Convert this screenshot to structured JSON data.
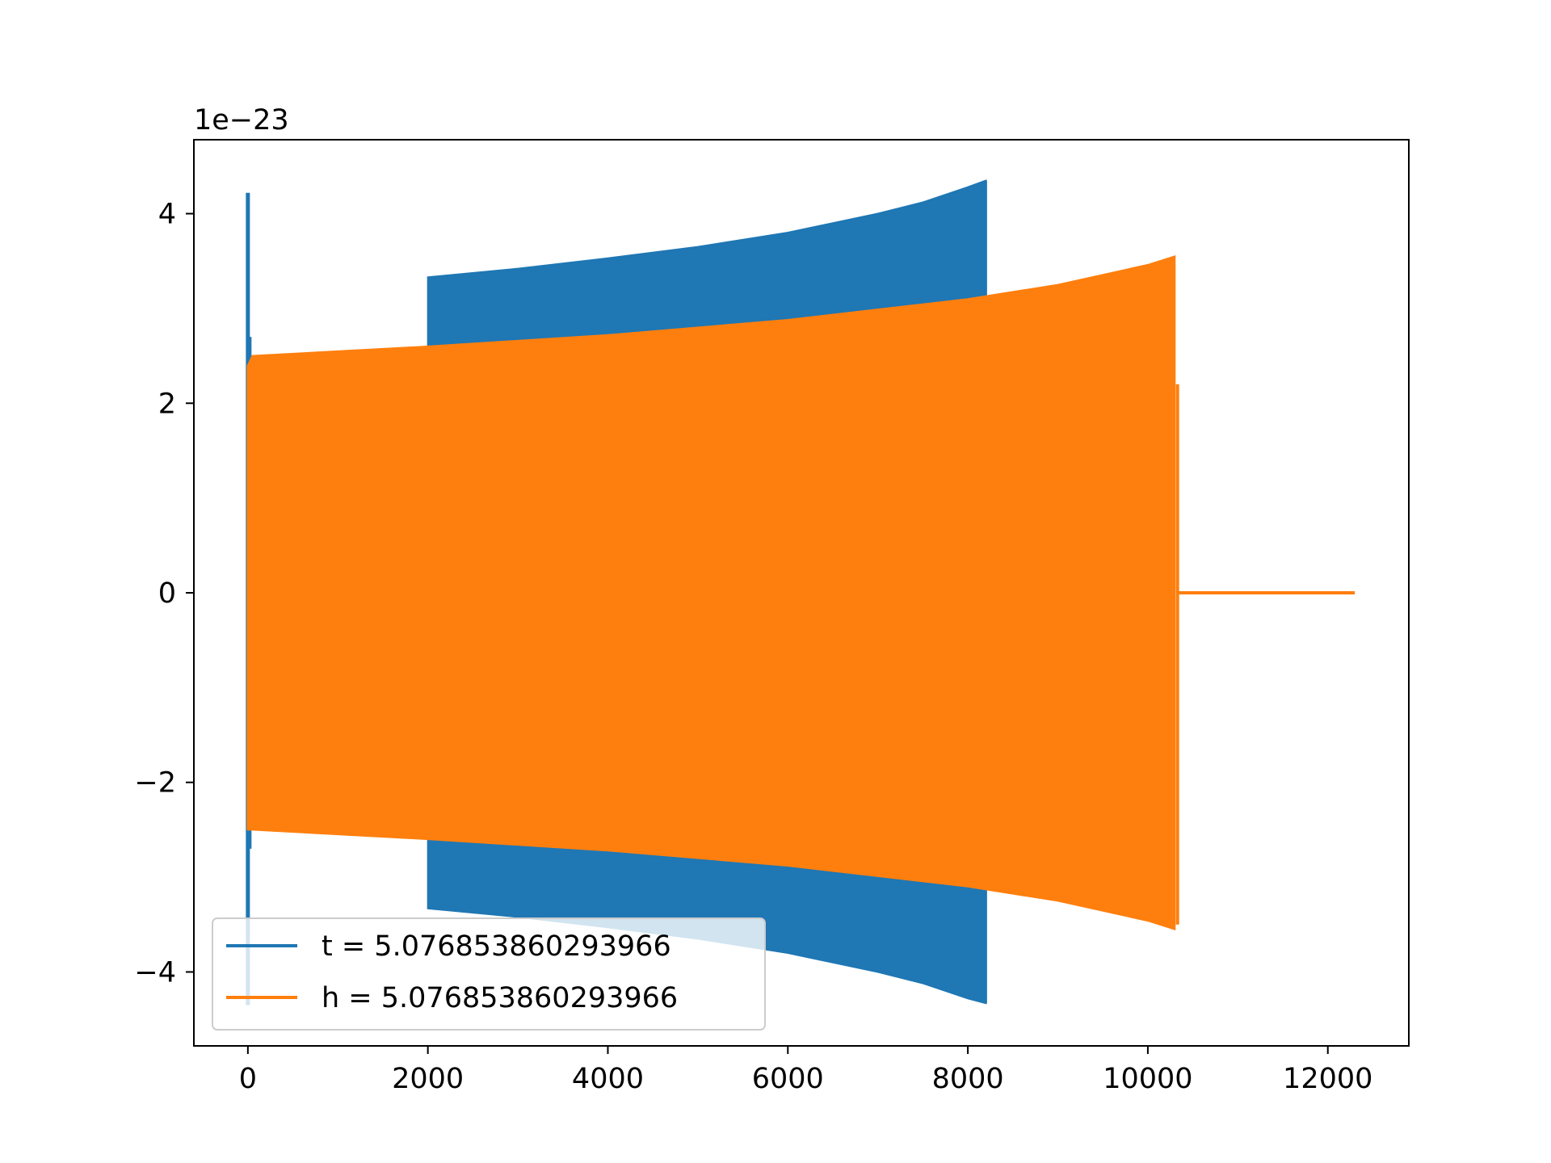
{
  "chart_data": {
    "type": "line",
    "y_offset_label": "1e−23",
    "y_scale_exponent": -23,
    "xlim": [
      -600,
      12900
    ],
    "ylim": [
      -4.78,
      4.78
    ],
    "x_ticks": [
      0,
      2000,
      4000,
      6000,
      8000,
      10000,
      12000
    ],
    "x_tick_labels": [
      "0",
      "2000",
      "4000",
      "6000",
      "8000",
      "10000",
      "12000"
    ],
    "y_ticks": [
      -4,
      -2,
      0,
      2,
      4
    ],
    "y_tick_labels": [
      "−4",
      "−2",
      "0",
      "2",
      "4"
    ],
    "grid": false,
    "legend_position": "lower left",
    "series": [
      {
        "name": "t = 5.076853860293966",
        "color": "#1f77b4",
        "initial_spike": {
          "x": 0,
          "max": 4.22,
          "min": -4.35,
          "secondary_max": 2.7
        },
        "envelope": [
          {
            "x": 2000,
            "upper": 3.33,
            "lower": -3.33
          },
          {
            "x": 3000,
            "upper": 3.42,
            "lower": -3.42
          },
          {
            "x": 4000,
            "upper": 3.53,
            "lower": -3.53
          },
          {
            "x": 5000,
            "upper": 3.65,
            "lower": -3.65
          },
          {
            "x": 6000,
            "upper": 3.8,
            "lower": -3.8
          },
          {
            "x": 7000,
            "upper": 4.0,
            "lower": -4.0
          },
          {
            "x": 7500,
            "upper": 4.12,
            "lower": -4.12
          },
          {
            "x": 8000,
            "upper": 4.28,
            "lower": -4.28
          },
          {
            "x": 8200,
            "upper": 4.35,
            "lower": -4.33
          }
        ]
      },
      {
        "name": "h = 5.076853860293966",
        "color": "#ff7f0e",
        "envelope": [
          {
            "x": 0,
            "upper": 2.4,
            "lower": -2.5
          },
          {
            "x": 50,
            "upper": 2.5,
            "lower": -2.5
          },
          {
            "x": 2000,
            "upper": 2.6,
            "lower": -2.6
          },
          {
            "x": 4000,
            "upper": 2.72,
            "lower": -2.72
          },
          {
            "x": 6000,
            "upper": 2.88,
            "lower": -2.88
          },
          {
            "x": 8000,
            "upper": 3.1,
            "lower": -3.1
          },
          {
            "x": 9000,
            "upper": 3.25,
            "lower": -3.25
          },
          {
            "x": 10000,
            "upper": 3.46,
            "lower": -3.46
          },
          {
            "x": 10300,
            "upper": 3.55,
            "lower": -3.55
          }
        ],
        "end_spike": {
          "x": 10330,
          "max": 2.2,
          "min": -3.5
        },
        "flat_tail": {
          "x_start": 10330,
          "x_end": 12300,
          "y": 0
        }
      }
    ]
  }
}
